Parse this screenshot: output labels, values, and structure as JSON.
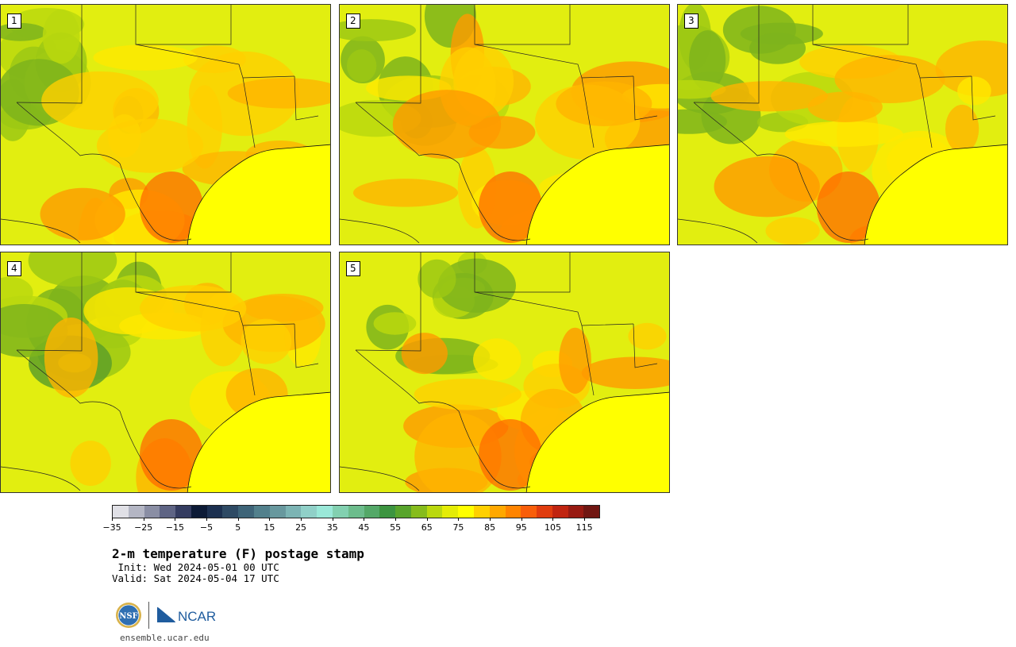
{
  "panels": [
    {
      "label": "1",
      "warmth": 0.55
    },
    {
      "label": "2",
      "warmth": 0.65
    },
    {
      "label": "3",
      "warmth": 0.45
    },
    {
      "label": "4",
      "warmth": 0.35
    },
    {
      "label": "5",
      "warmth": 0.6
    }
  ],
  "colorbar": {
    "colors": [
      "#e0e0e6",
      "#b4b6c4",
      "#8a8ea4",
      "#5e6484",
      "#343c60",
      "#0c1a36",
      "#1c3050",
      "#2e4a64",
      "#3e6478",
      "#52808c",
      "#68989e",
      "#7cb4b4",
      "#90d0c8",
      "#9ae8d8",
      "#82d0b0",
      "#6cbc8c",
      "#54a868",
      "#3c9440",
      "#58a42c",
      "#86bc1c",
      "#bad80e",
      "#e4ec06",
      "#ffff00",
      "#ffd000",
      "#ffa800",
      "#ff8400",
      "#f85e0a",
      "#e03c0e",
      "#c02410",
      "#981a12",
      "#701612"
    ],
    "tick_labels": [
      "−35",
      "−25",
      "−15",
      "−5",
      "5",
      "15",
      "25",
      "35",
      "45",
      "55",
      "65",
      "75",
      "85",
      "95",
      "105",
      "115"
    ]
  },
  "title": "2-m temperature (F) postage stamp",
  "init": " Init: Wed 2024-05-01 00 UTC",
  "valid": "Valid: Sat 2024-05-04 17 UTC",
  "site": "ensemble.ucar.edu",
  "logos": {
    "nsf": "NSF",
    "ncar": "NCAR"
  }
}
